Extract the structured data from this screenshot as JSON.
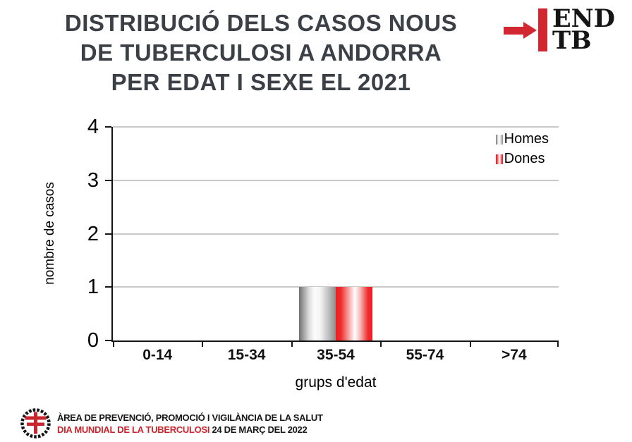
{
  "title": {
    "lines": [
      "DISTRIBUCIÓ DELS CASOS NOUS",
      "DE TUBERCULOSI A ANDORRA",
      "PER EDAT I SEXE EL 2021"
    ]
  },
  "logo": {
    "line1": "END",
    "line2": "TB",
    "red": "#d22630"
  },
  "chart_data": {
    "type": "bar",
    "title": "DISTRIBUCIÓ DELS CASOS NOUS DE TUBERCULOSI A ANDORRA PER EDAT I SEXE EL 2021",
    "categories": [
      "0-14",
      "15-34",
      "35-54",
      "55-74",
      ">74"
    ],
    "series": [
      {
        "name": "Homes",
        "color": "#8d8d8d",
        "values": [
          0,
          0,
          1,
          0,
          0
        ]
      },
      {
        "name": "Dones",
        "color": "#ee1c25",
        "values": [
          0,
          0,
          1,
          0,
          0
        ]
      }
    ],
    "xlabel": "grups d'edat",
    "ylabel": "nombre de casos",
    "ylim": [
      0,
      4
    ],
    "yticks": [
      0,
      1,
      2,
      3,
      4
    ],
    "grid": true,
    "legend_position": "top-right"
  },
  "footer": {
    "line1": "ÀREA DE PREVENCIÓ, PROMOCIÓ I VIGILÀNCIA DE LA SALUT",
    "line2_red": "DIA MUNDIAL DE LA TUBERCULOSI",
    "line2_black": "24 DE MARÇ DEL 2022",
    "red": "#c9252c"
  },
  "colors": {
    "title_text": "#3b4046",
    "gridline": "#c9c9c9",
    "axis": "#151515",
    "background": "#ffffff"
  }
}
